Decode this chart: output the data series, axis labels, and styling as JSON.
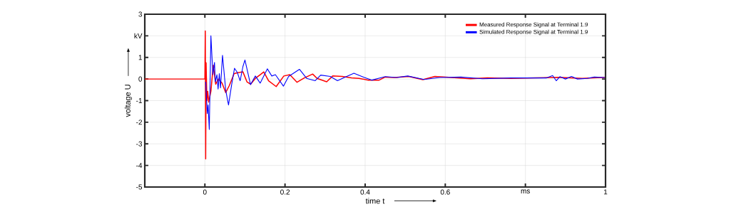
{
  "chart_data": {
    "type": "line",
    "xlabel": "time t",
    "ylabel": "voltage U",
    "xlim": [
      -0.15,
      1
    ],
    "ylim": [
      -5,
      3
    ],
    "xticks": [
      0,
      0.2,
      0.4,
      0.6,
      {
        "value": 0.8,
        "label": "ms"
      },
      1
    ],
    "yticks": [
      -5,
      -4,
      -3,
      -2,
      -1,
      0,
      1,
      {
        "value": 2,
        "label": "kV"
      },
      3
    ],
    "grid": true,
    "legend": "top right",
    "series": [
      {
        "name": "Measured Response Signal at Terminal 1.9",
        "color": "#ff0000",
        "x": [
          -0.15,
          0,
          0.001,
          0.002,
          0.003,
          0.005,
          0.007,
          0.0095,
          0.015,
          0.021,
          0.027,
          0.034,
          0.043,
          0.052,
          0.061,
          0.073,
          0.082,
          0.095,
          0.105,
          0.114,
          0.126,
          0.138,
          0.147,
          0.159,
          0.178,
          0.197,
          0.212,
          0.23,
          0.248,
          0.269,
          0.28,
          0.304,
          0.319,
          0.343,
          0.366,
          0.385,
          0.408,
          0.435,
          0.45,
          0.473,
          0.509,
          0.544,
          0.574,
          0.616,
          0.663,
          0.705,
          0.764,
          0.823,
          0.883,
          0.942,
          0.998
        ],
        "values": [
          0,
          0,
          2.23,
          -3.7,
          0.75,
          -1.0,
          -0.57,
          -1.07,
          -0.57,
          0.64,
          -0.24,
          0,
          -0.19,
          -0.63,
          -0.3,
          0.25,
          0.29,
          0.33,
          -0.13,
          -0.24,
          0.03,
          0.2,
          0.33,
          -0.08,
          -0.35,
          0.14,
          0.2,
          -0.15,
          0.05,
          0.23,
          0.03,
          -0.13,
          0.14,
          0.12,
          0.05,
          0.03,
          -0.05,
          -0.05,
          0.09,
          0.07,
          0.12,
          -0.03,
          0.12,
          0.07,
          0.01,
          0.05,
          0.03,
          0.05,
          0.08,
          0.03,
          0.08
        ]
      },
      {
        "name": "Simulated Response Signal at Terminal 1.9",
        "color": "#0000ff",
        "x": [
          0.002,
          0.006,
          0.008,
          0.011,
          0.015,
          0.02,
          0.024,
          0.026,
          0.03,
          0.033,
          0.036,
          0.039,
          0.044,
          0.052,
          0.059,
          0.067,
          0.074,
          0.081,
          0.088,
          0.095,
          0.1,
          0.114,
          0.126,
          0.138,
          0.156,
          0.167,
          0.176,
          0.196,
          0.209,
          0.236,
          0.254,
          0.275,
          0.289,
          0.313,
          0.331,
          0.346,
          0.372,
          0.396,
          0.417,
          0.45,
          0.479,
          0.506,
          0.547,
          0.586,
          0.639,
          0.693,
          0.764,
          0.853,
          0.868,
          0.877,
          0.886,
          0.9,
          0.915,
          0.93,
          0.954,
          0.972,
          0.998
        ],
        "values": [
          -0.13,
          -1.6,
          -1.2,
          -2.33,
          2.0,
          0.2,
          0.77,
          -0.13,
          0.2,
          -0.46,
          0.25,
          -0.41,
          1.1,
          -0.52,
          -1.2,
          -0.24,
          0.5,
          0.3,
          -0.08,
          0.58,
          0.88,
          -0.26,
          0.14,
          -0.19,
          0.47,
          0.14,
          0.2,
          -0.33,
          0.12,
          0.45,
          0.03,
          -0.08,
          0.18,
          0.12,
          -0.08,
          0.05,
          0.27,
          0.09,
          -0.05,
          0.11,
          0.07,
          0.14,
          -0.02,
          0.07,
          0.09,
          0.01,
          0.05,
          0.05,
          0.16,
          -0.08,
          0.11,
          0,
          0.12,
          0,
          0.03,
          0.09,
          0.07
        ]
      }
    ]
  }
}
